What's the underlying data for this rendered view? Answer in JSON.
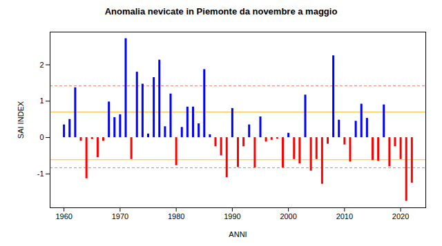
{
  "chart_data": {
    "type": "bar",
    "title": "Anomalia nevicate in Piemonte da novembre a maggio",
    "x_label": "ANNI",
    "y_label": "SAI INDEX",
    "x": [
      1960,
      1961,
      1962,
      1963,
      1964,
      1965,
      1966,
      1967,
      1968,
      1969,
      1970,
      1971,
      1972,
      1973,
      1974,
      1975,
      1976,
      1977,
      1978,
      1979,
      1980,
      1981,
      1982,
      1983,
      1984,
      1985,
      1986,
      1987,
      1988,
      1989,
      1990,
      1991,
      1992,
      1993,
      1994,
      1995,
      1996,
      1997,
      1998,
      1999,
      2000,
      2001,
      2002,
      2003,
      2004,
      2005,
      2006,
      2007,
      2008,
      2009,
      2010,
      2011,
      2012,
      2013,
      2014,
      2015,
      2016,
      2017,
      2018,
      2019,
      2020,
      2021,
      2022
    ],
    "values": [
      0.35,
      0.5,
      1.37,
      -0.1,
      -1.13,
      -0.05,
      -0.55,
      -0.1,
      0.98,
      0.55,
      0.63,
      2.72,
      -0.6,
      1.8,
      1.47,
      0.1,
      1.65,
      2.13,
      0.3,
      1.2,
      -0.77,
      0.28,
      0.84,
      0.84,
      0.38,
      1.87,
      0.08,
      -0.25,
      -0.5,
      -1.1,
      0.8,
      -0.82,
      -0.25,
      0.35,
      -0.83,
      0.57,
      -0.12,
      -0.07,
      -0.04,
      -0.83,
      0.12,
      -0.6,
      -0.72,
      1.17,
      -0.92,
      -0.6,
      -1.28,
      -0.18,
      2.25,
      0.48,
      -0.2,
      -0.67,
      0.45,
      0.92,
      0.53,
      -0.63,
      -0.65,
      0.9,
      -0.8,
      -0.25,
      -0.6,
      -1.75,
      -1.25
    ],
    "colors": [
      "#0000ff",
      "#0000ff",
      "#0000ff",
      "#ff0000",
      "#ff0000",
      "#ff0000",
      "#ff0000",
      "#ff0000",
      "#0000ff",
      "#0000ff",
      "#0000ff",
      "#0000ff",
      "#ff0000",
      "#0000ff",
      "#0000ff",
      "#0000ff",
      "#0000ff",
      "#0000ff",
      "#0000ff",
      "#0000ff",
      "#ff0000",
      "#0000ff",
      "#0000ff",
      "#0000ff",
      "#0000ff",
      "#0000ff",
      "#0000ff",
      "#ff0000",
      "#ff0000",
      "#ff0000",
      "#0000ff",
      "#ff0000",
      "#ff0000",
      "#0000ff",
      "#ff0000",
      "#0000ff",
      "#ff0000",
      "#ff0000",
      "#ff0000",
      "#ff0000",
      "#0000ff",
      "#ff0000",
      "#ff0000",
      "#0000ff",
      "#ff0000",
      "#ff0000",
      "#ff0000",
      "#ff0000",
      "#0000ff",
      "#0000ff",
      "#ff0000",
      "#ff0000",
      "#0000ff",
      "#0000ff",
      "#0000ff",
      "#ff0000",
      "#ff0000",
      "#0000ff",
      "#ff0000",
      "#ff0000",
      "#ff0000",
      "#ff0000",
      "#ff0000"
    ],
    "reference_lines": [
      {
        "value": 0.7,
        "color": "#ffb732",
        "line_style": "solid"
      },
      {
        "value": -0.61,
        "color": "#ffb732",
        "line_style": "solid"
      },
      {
        "value": 1.42,
        "color": "#f08070",
        "line_style": "dashed"
      },
      {
        "value": -0.83,
        "color": "#f08070",
        "line_style": "dashed"
      }
    ],
    "xlim": [
      1957.52,
      2024.48
    ],
    "xticks": [
      1960,
      1970,
      1980,
      1990,
      2000,
      2010,
      2020
    ],
    "ylim": [
      -1.93,
      2.9
    ],
    "yticks": [
      -1,
      0,
      1,
      2
    ],
    "grid": false
  }
}
